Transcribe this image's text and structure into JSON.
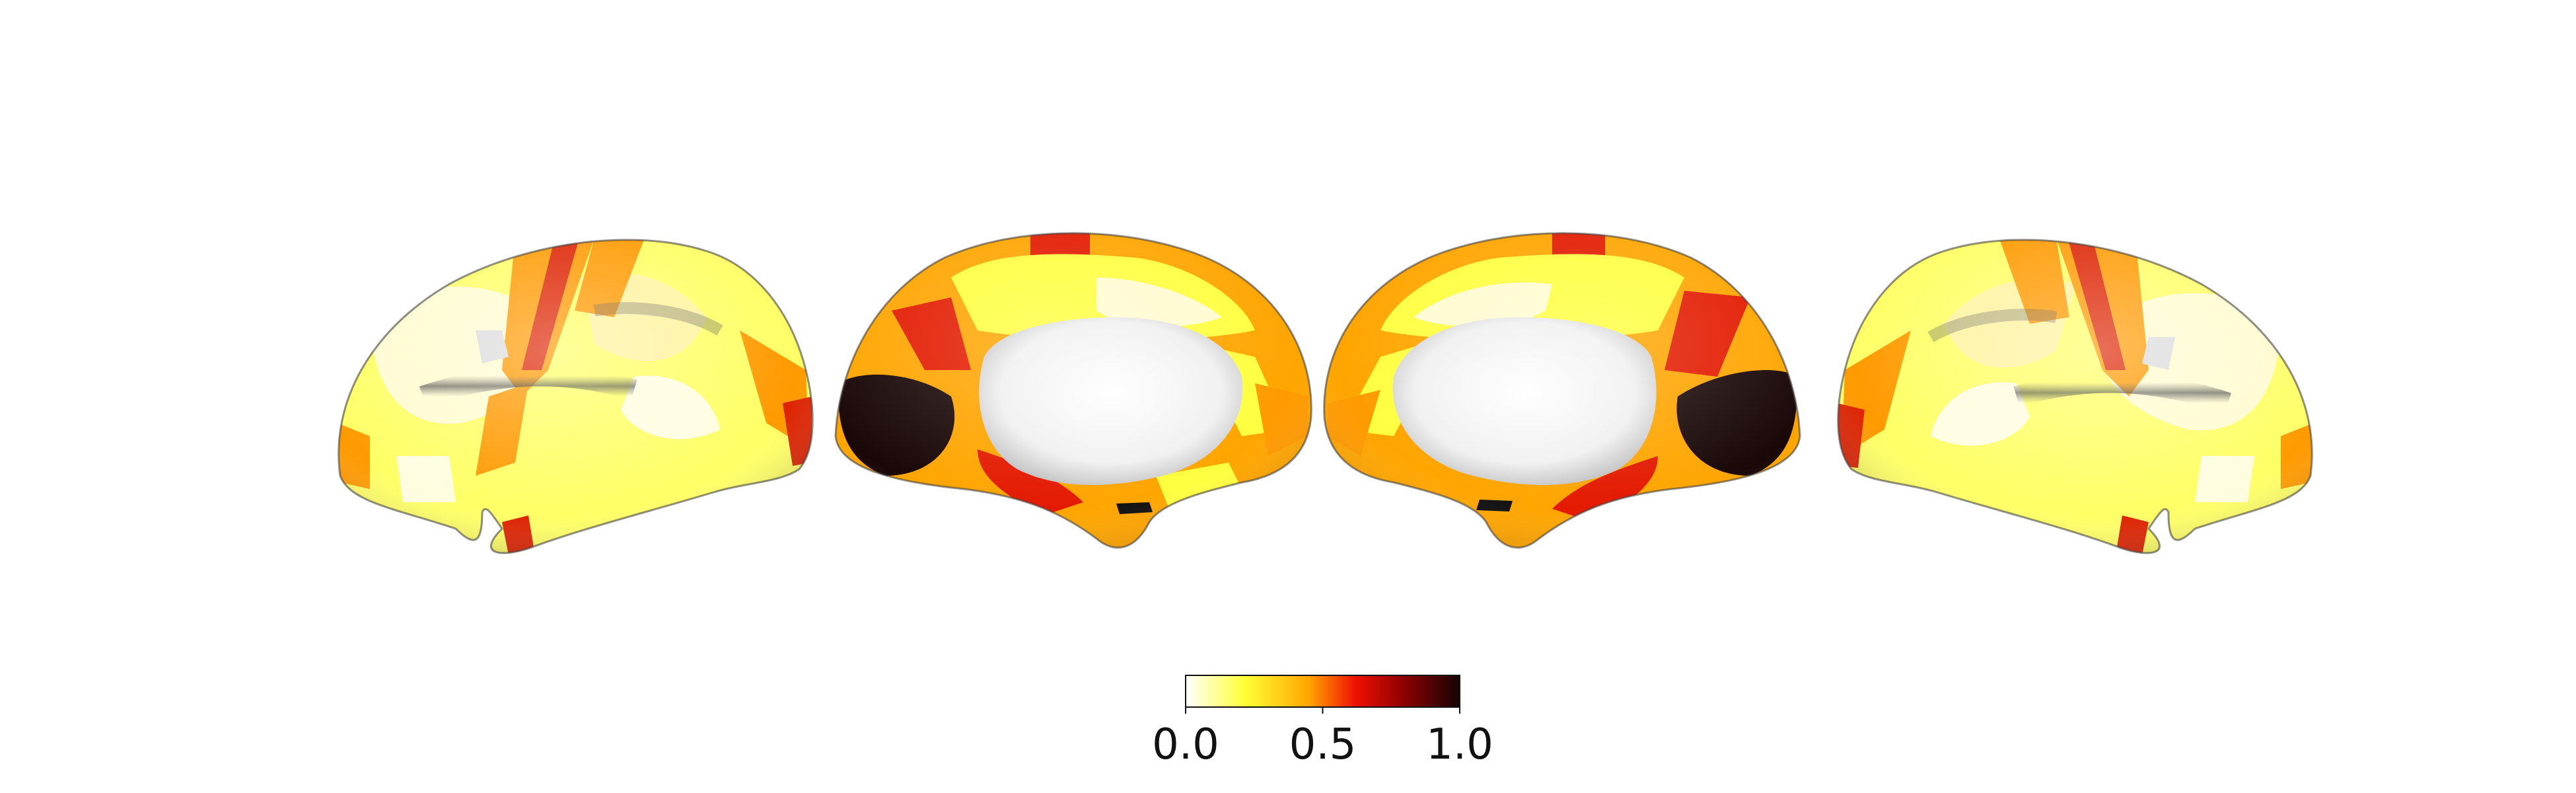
{
  "figure": {
    "type": "brain-surface-map",
    "views": [
      {
        "hemisphere": "left",
        "view": "lateral"
      },
      {
        "hemisphere": "left",
        "view": "medial"
      },
      {
        "hemisphere": "right",
        "view": "medial"
      },
      {
        "hemisphere": "right",
        "view": "lateral"
      }
    ],
    "colormap": "hot_r",
    "colormap_stops": [
      "#ffffff",
      "#ffff33",
      "#ffa500",
      "#ee1100",
      "#8b0000",
      "#140505"
    ],
    "medial_wall_color": "#ececec"
  },
  "colorbar": {
    "range": [
      0.0,
      1.0
    ],
    "ticks": [
      {
        "value": 0.0,
        "label": "0.0"
      },
      {
        "value": 0.5,
        "label": "0.5"
      },
      {
        "value": 1.0,
        "label": "1.0"
      }
    ]
  }
}
